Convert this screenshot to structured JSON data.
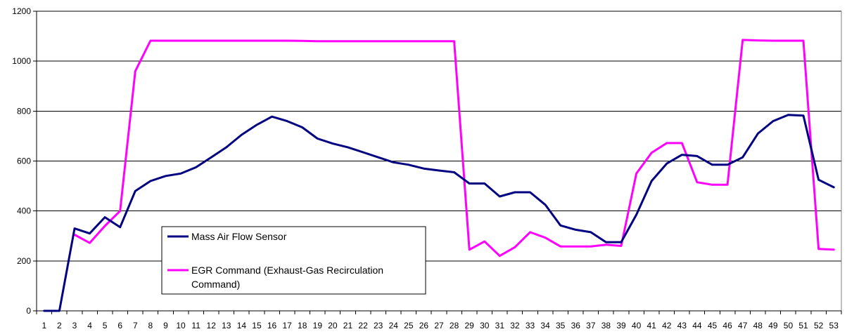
{
  "chart_data": {
    "type": "line",
    "title": "",
    "xlabel": "",
    "ylabel": "",
    "ylim": [
      0,
      1200
    ],
    "yticks": [
      0,
      200,
      400,
      600,
      800,
      1000,
      1200
    ],
    "grid": "horizontal",
    "legend_position": "lower-left inside plot",
    "x": [
      1,
      2,
      3,
      4,
      5,
      6,
      7,
      8,
      9,
      10,
      11,
      12,
      13,
      14,
      15,
      16,
      17,
      18,
      19,
      20,
      21,
      22,
      23,
      24,
      25,
      26,
      27,
      28,
      29,
      30,
      31,
      32,
      33,
      34,
      35,
      36,
      37,
      38,
      39,
      40,
      41,
      42,
      43,
      44,
      45,
      46,
      47,
      48,
      49,
      50,
      51,
      52,
      53
    ],
    "series": [
      {
        "name": "Mass Air Flow Sensor",
        "color": "#000080",
        "values": [
          0,
          0,
          330,
          310,
          375,
          335,
          480,
          520,
          540,
          550,
          575,
          615,
          655,
          705,
          745,
          778,
          760,
          735,
          690,
          670,
          655,
          635,
          615,
          595,
          585,
          570,
          562,
          555,
          510,
          510,
          458,
          475,
          475,
          425,
          342,
          325,
          315,
          275,
          275,
          385,
          520,
          590,
          625,
          620,
          585,
          585,
          615,
          710,
          760,
          785,
          782,
          525,
          495
        ]
      },
      {
        "name": "EGR Command (Exhaust-Gas Recirculation Command)",
        "name_lines": [
          "EGR Command (Exhaust-Gas Recirculation",
          "Command)"
        ],
        "color": "#FF00FF",
        "start_index": 2,
        "values": [
          null,
          null,
          305,
          272,
          340,
          400,
          960,
          1082,
          1082,
          1082,
          1082,
          1082,
          1082,
          1082,
          1082,
          1082,
          1082,
          1081,
          1080,
          1080,
          1080,
          1080,
          1080,
          1080,
          1080,
          1080,
          1080,
          1080,
          245,
          278,
          220,
          255,
          315,
          293,
          258,
          258,
          258,
          265,
          260,
          550,
          633,
          672,
          672,
          515,
          505,
          505,
          1085,
          1083,
          1082,
          1082,
          1082,
          248,
          245
        ]
      }
    ]
  }
}
